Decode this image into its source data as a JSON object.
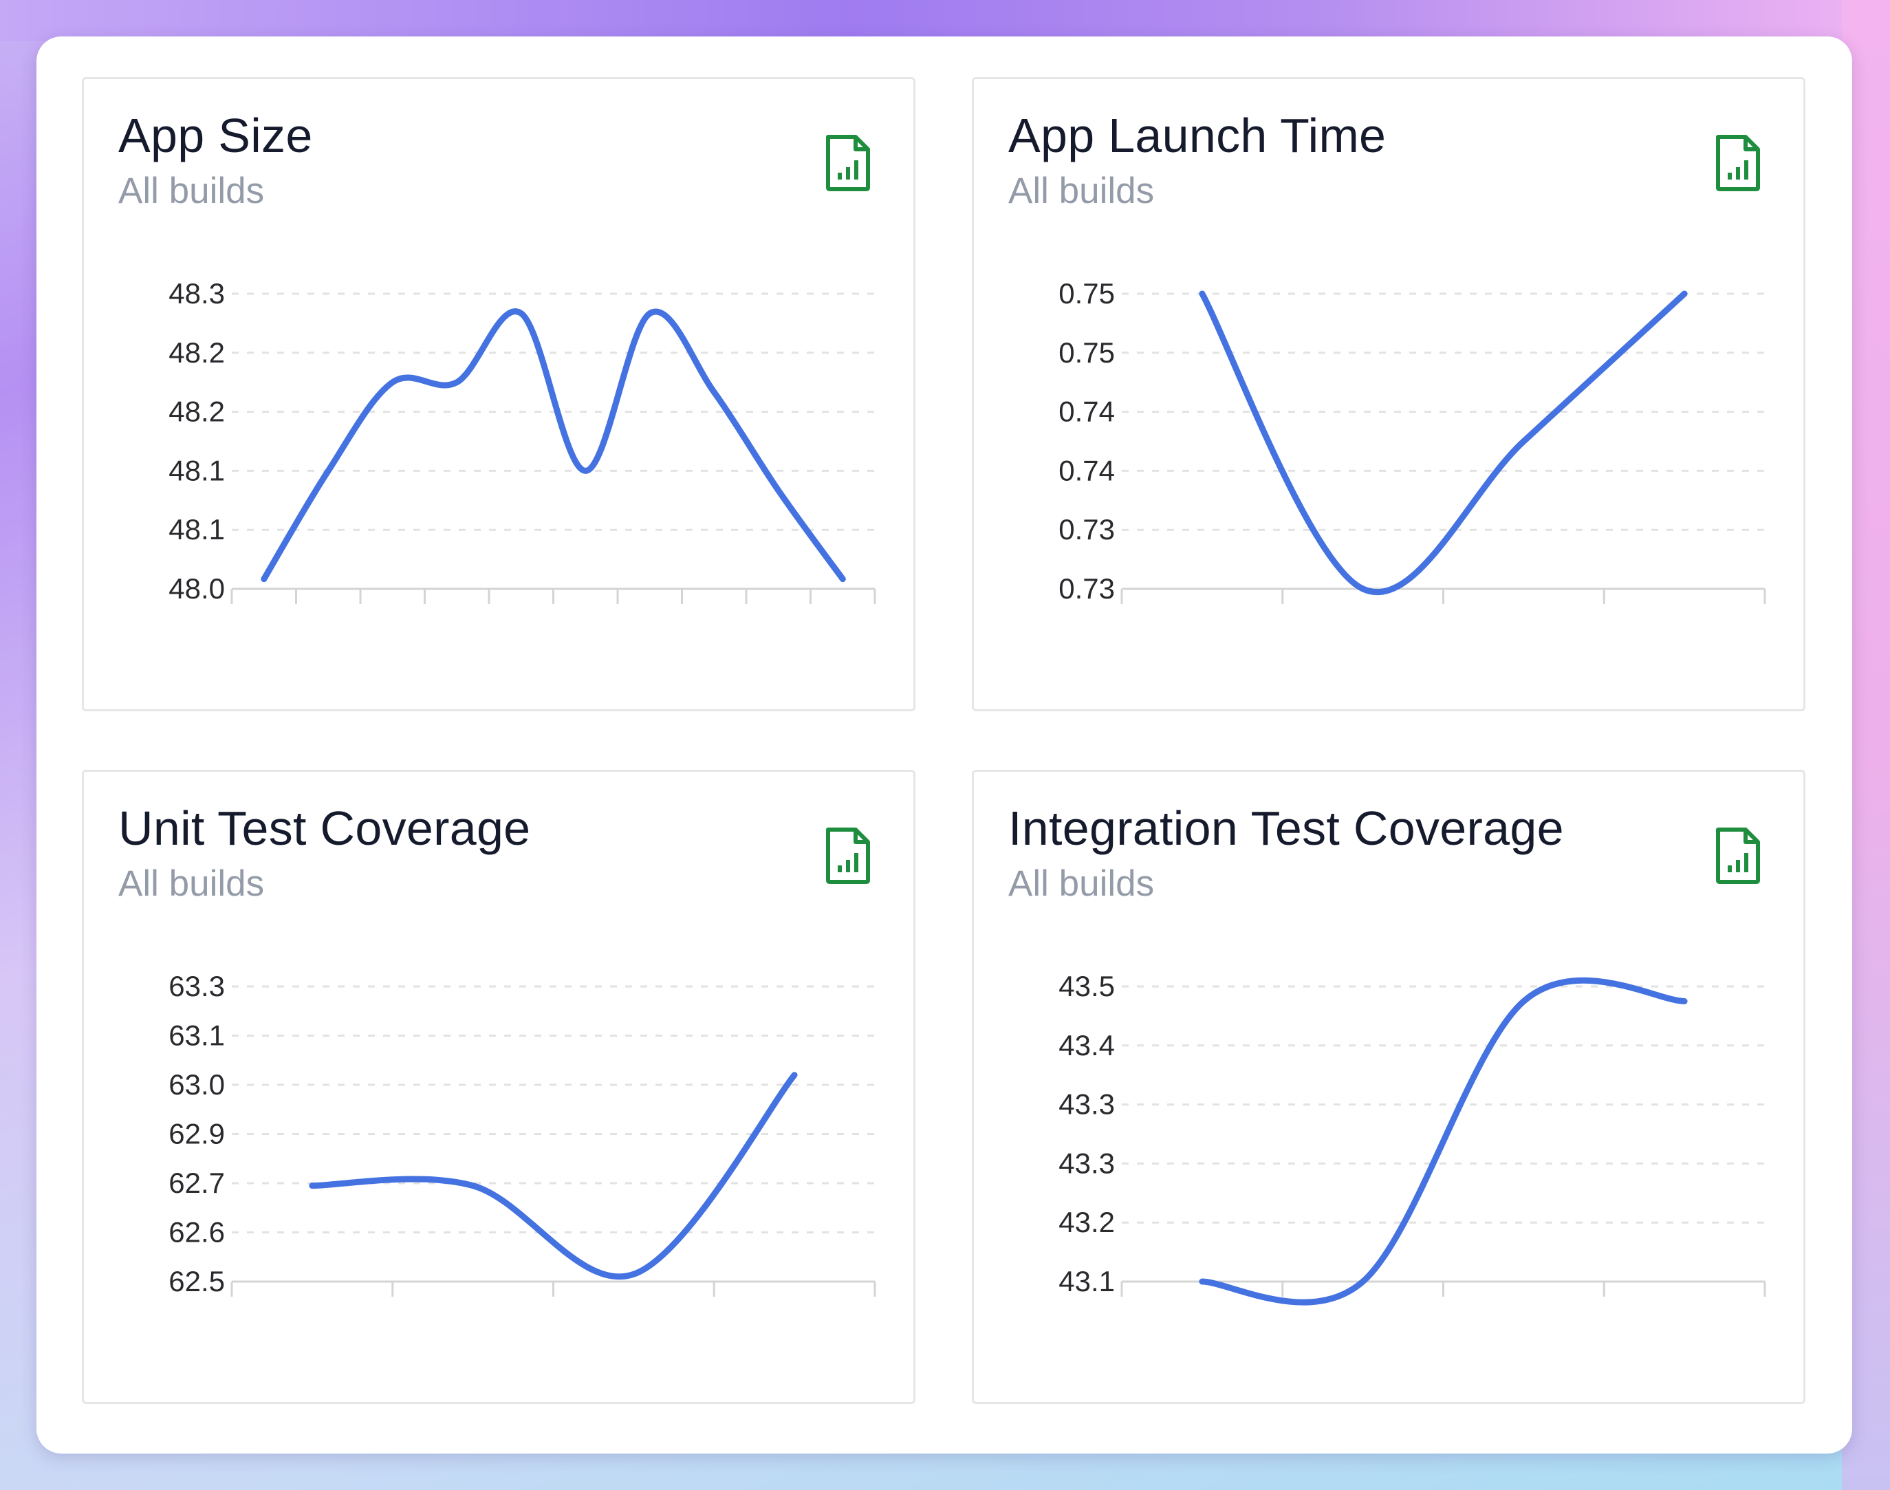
{
  "colors": {
    "line": "#4472e0",
    "grid": "#e2e2e2",
    "axis": "#d4d4d4",
    "icon": "#1e8e3e"
  },
  "icons": {
    "export": "spreadsheet-chart-icon"
  },
  "cards": [
    {
      "title": "App Size",
      "subtitle": "All builds",
      "chart_data": {
        "type": "line",
        "title": "App Size",
        "subtitle": "All builds",
        "y_tick_labels": [
          "48.3",
          "48.2",
          "48.2",
          "48.1",
          "48.1",
          "48.0"
        ],
        "ylim": [
          48.0,
          48.3
        ],
        "x_tick_count": 11,
        "grid": true,
        "legend": "none",
        "values": [
          48.01,
          48.12,
          48.21,
          48.21,
          48.28,
          48.12,
          48.28,
          48.2,
          48.1,
          48.01
        ]
      }
    },
    {
      "title": "App Launch Time",
      "subtitle": "All builds",
      "chart_data": {
        "type": "line",
        "title": "App Launch Time",
        "subtitle": "All builds",
        "y_tick_labels": [
          "0.75",
          "0.75",
          "0.74",
          "0.74",
          "0.73",
          "0.73"
        ],
        "ylim": [
          0.73,
          0.755
        ],
        "x_tick_count": 5,
        "grid": true,
        "legend": "none",
        "values": [
          0.755,
          0.73,
          0.7425,
          0.755
        ]
      }
    },
    {
      "title": "Unit Test Coverage",
      "subtitle": "All builds",
      "chart_data": {
        "type": "line",
        "title": "Unit Test Coverage",
        "subtitle": "All builds",
        "y_tick_labels": [
          "63.3",
          "63.1",
          "63.0",
          "62.9",
          "62.7",
          "62.6",
          "62.5"
        ],
        "ylim": [
          62.5,
          63.3
        ],
        "x_tick_count": 5,
        "grid": true,
        "legend": "none",
        "values": [
          62.76,
          62.76,
          62.52,
          63.06
        ]
      }
    },
    {
      "title": "Integration Test Coverage",
      "subtitle": "All builds",
      "chart_data": {
        "type": "line",
        "title": "Integration Test Coverage",
        "subtitle": "All builds",
        "y_tick_labels": [
          "43.5",
          "43.4",
          "43.3",
          "43.3",
          "43.2",
          "43.1"
        ],
        "ylim": [
          43.1,
          43.5
        ],
        "x_tick_count": 5,
        "grid": true,
        "legend": "none",
        "values": [
          43.1,
          43.1,
          43.48,
          43.48
        ]
      }
    }
  ]
}
